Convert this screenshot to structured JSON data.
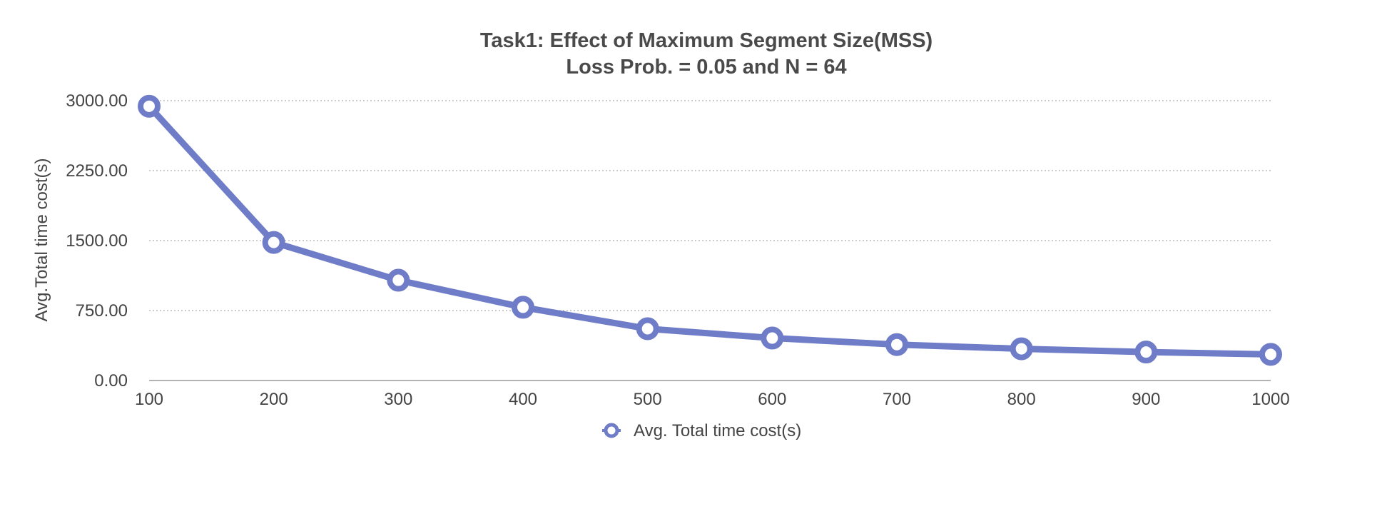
{
  "chart_data": {
    "type": "line",
    "title": "Task1:  Effect of Maximum Segment Size(MSS)",
    "subtitle": "Loss Prob. = 0.05 and N = 64",
    "xlabel": "",
    "ylabel": "Avg.Total time cost(s)",
    "x": [
      100,
      200,
      300,
      400,
      500,
      600,
      700,
      800,
      900,
      1000
    ],
    "x_tick_labels": [
      "100",
      "200",
      "300",
      "400",
      "500",
      "600",
      "700",
      "800",
      "900",
      "1000"
    ],
    "y_tick_labels": [
      "0.00",
      "750.00",
      "1500.00",
      "2250.00",
      "3000.00"
    ],
    "y_ticks": [
      0,
      750,
      1500,
      2250,
      3000
    ],
    "ylim": [
      0,
      3000
    ],
    "xlim": [
      100,
      1000
    ],
    "grid": "horizontal dotted",
    "legend_position": "bottom-center",
    "series": [
      {
        "name": "Avg. Total time cost(s)",
        "color": "#6f7dc8",
        "marker": "hollow-circle",
        "values": [
          2940,
          1480,
          1075,
          785,
          555,
          455,
          385,
          340,
          305,
          280
        ]
      }
    ]
  }
}
